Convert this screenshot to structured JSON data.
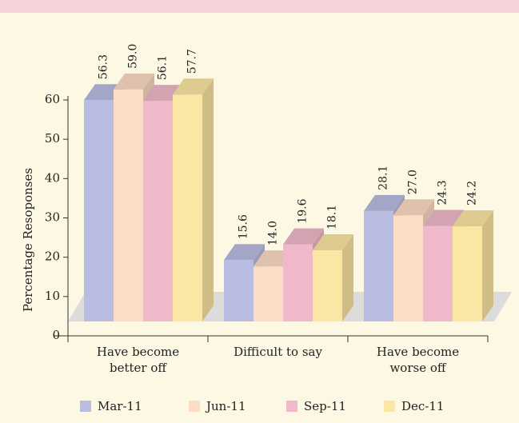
{
  "chart_data": {
    "type": "bar3d",
    "y_label": "Percentage  Resoponses",
    "categories": [
      "Have become better off",
      "Difficult to say",
      "Have become worse off"
    ],
    "series": [
      {
        "name": "Mar-11",
        "color": "#b9bde2",
        "values": [
          56.3,
          15.6,
          28.1
        ],
        "value_labels": [
          "56.3",
          "15.6",
          "28.1"
        ]
      },
      {
        "name": "Jun-11",
        "color": "#fddcc6",
        "values": [
          59.0,
          14.0,
          27.0
        ],
        "value_labels": [
          "59.0",
          "14.0",
          "27.0"
        ]
      },
      {
        "name": "Sep-11",
        "color": "#f0b9c9",
        "values": [
          56.1,
          19.6,
          24.3
        ],
        "value_labels": [
          "56.1",
          "19.6",
          "24.3"
        ]
      },
      {
        "name": "Dec-11",
        "color": "#fbe7a4",
        "values": [
          57.7,
          18.1,
          24.2
        ],
        "value_labels": [
          "57.7",
          "18.1",
          "24.2"
        ]
      }
    ],
    "ylim": [
      0,
      60
    ],
    "yticks": [
      0,
      10,
      20,
      30,
      40,
      50,
      60
    ],
    "legend": "bottom"
  }
}
